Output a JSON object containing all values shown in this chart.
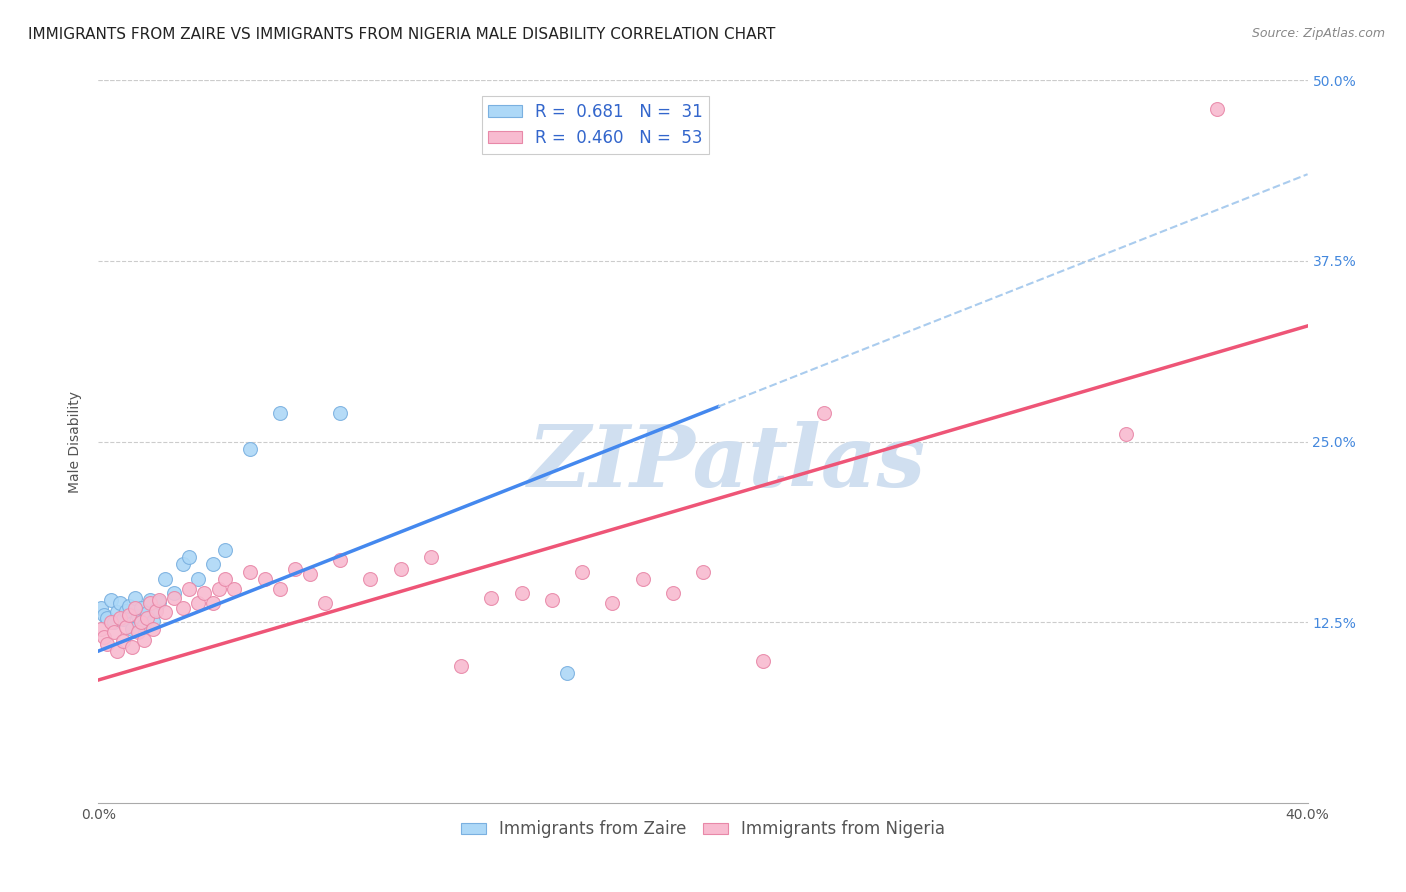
{
  "title": "IMMIGRANTS FROM ZAIRE VS IMMIGRANTS FROM NIGERIA MALE DISABILITY CORRELATION CHART",
  "source": "Source: ZipAtlas.com",
  "xlabel_label": "Immigrants from Zaire",
  "ylabel_label": "Male Disability",
  "x_label_bottom": "Immigrants from Nigeria",
  "xlim": [
    0.0,
    0.4
  ],
  "ylim": [
    0.0,
    0.5
  ],
  "xtick_labels": [
    "0.0%",
    "",
    "",
    "",
    "40.0%"
  ],
  "xtick_vals": [
    0.0,
    0.1,
    0.2,
    0.3,
    0.4
  ],
  "ytick_labels": [
    "12.5%",
    "25.0%",
    "37.5%",
    "50.0%"
  ],
  "ytick_vals": [
    0.125,
    0.25,
    0.375,
    0.5
  ],
  "zaire_color": "#add8f7",
  "nigeria_color": "#f8bbd0",
  "zaire_edge": "#7ab0e0",
  "nigeria_edge": "#e888a8",
  "line_zaire_color": "#4488ee",
  "line_nigeria_color": "#ee5577",
  "dashed_line_color": "#aaccee",
  "background_color": "#ffffff",
  "watermark_color": "#d0dff0",
  "marker_size": 100,
  "title_fontsize": 11,
  "axis_label_fontsize": 10,
  "tick_fontsize": 10,
  "legend_fontsize": 12,
  "zaire_line_x0": 0.0,
  "zaire_line_y0": 0.105,
  "zaire_line_x1": 0.2,
  "zaire_line_y1": 0.27,
  "nigeria_line_x0": 0.0,
  "nigeria_line_y0": 0.085,
  "nigeria_line_x1": 0.4,
  "nigeria_line_y1": 0.33,
  "zaire_scatter_x": [
    0.001,
    0.002,
    0.003,
    0.004,
    0.005,
    0.006,
    0.007,
    0.008,
    0.009,
    0.01,
    0.011,
    0.012,
    0.013,
    0.014,
    0.015,
    0.016,
    0.017,
    0.018,
    0.019,
    0.02,
    0.022,
    0.025,
    0.028,
    0.03,
    0.033,
    0.038,
    0.042,
    0.05,
    0.06,
    0.08,
    0.155
  ],
  "zaire_scatter_y": [
    0.135,
    0.13,
    0.128,
    0.14,
    0.125,
    0.132,
    0.138,
    0.127,
    0.133,
    0.136,
    0.12,
    0.142,
    0.129,
    0.135,
    0.123,
    0.131,
    0.14,
    0.126,
    0.134,
    0.139,
    0.155,
    0.145,
    0.165,
    0.17,
    0.155,
    0.165,
    0.175,
    0.245,
    0.27,
    0.27,
    0.09
  ],
  "nigeria_scatter_x": [
    0.001,
    0.002,
    0.003,
    0.004,
    0.005,
    0.006,
    0.007,
    0.008,
    0.009,
    0.01,
    0.011,
    0.012,
    0.013,
    0.014,
    0.015,
    0.016,
    0.017,
    0.018,
    0.019,
    0.02,
    0.022,
    0.025,
    0.028,
    0.03,
    0.033,
    0.035,
    0.038,
    0.04,
    0.042,
    0.045,
    0.05,
    0.055,
    0.06,
    0.065,
    0.07,
    0.075,
    0.08,
    0.09,
    0.1,
    0.11,
    0.12,
    0.13,
    0.14,
    0.15,
    0.16,
    0.17,
    0.18,
    0.19,
    0.2,
    0.22,
    0.24,
    0.34,
    0.37
  ],
  "nigeria_scatter_y": [
    0.12,
    0.115,
    0.11,
    0.125,
    0.118,
    0.105,
    0.128,
    0.112,
    0.122,
    0.13,
    0.108,
    0.135,
    0.118,
    0.125,
    0.113,
    0.128,
    0.138,
    0.12,
    0.133,
    0.14,
    0.132,
    0.142,
    0.135,
    0.148,
    0.138,
    0.145,
    0.138,
    0.148,
    0.155,
    0.148,
    0.16,
    0.155,
    0.148,
    0.162,
    0.158,
    0.138,
    0.168,
    0.155,
    0.162,
    0.17,
    0.095,
    0.142,
    0.145,
    0.14,
    0.16,
    0.138,
    0.155,
    0.145,
    0.16,
    0.098,
    0.27,
    0.255,
    0.48
  ]
}
